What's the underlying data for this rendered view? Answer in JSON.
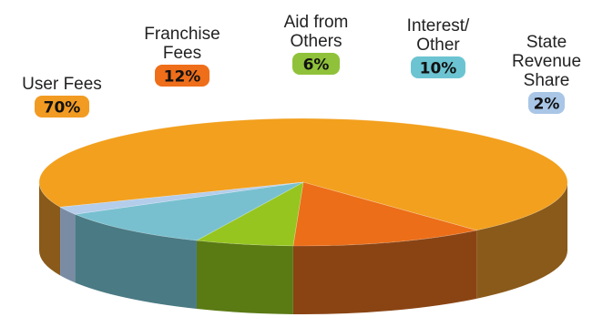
{
  "chart_data": {
    "type": "pie",
    "slices": [
      {
        "label_lines": [
          "User Fees"
        ],
        "value": 70,
        "display": "70%",
        "color": "#F2A01E",
        "side_color": "#8A5A1A",
        "badge_color": "#F29B22",
        "badge_text_color": "#111111"
      },
      {
        "label_lines": [
          "Franchise",
          "Fees"
        ],
        "value": 12,
        "display": "12%",
        "color": "#EC6E18",
        "side_color": "#8A4414",
        "badge_color": "#EE6E1A",
        "badge_text_color": "#111111"
      },
      {
        "label_lines": [
          "Aid from",
          "Others"
        ],
        "value": 6,
        "display": "6%",
        "color": "#96C51F",
        "side_color": "#5A7A14",
        "badge_color": "#8FC23A",
        "badge_text_color": "#111111"
      },
      {
        "label_lines": [
          "Interest/",
          "Other"
        ],
        "value": 10,
        "display": "10%",
        "color": "#78C0CF",
        "side_color": "#4A7A84",
        "badge_color": "#6CC4D2",
        "badge_text_color": "#111111"
      },
      {
        "label_lines": [
          "State",
          "Revenue",
          "Share"
        ],
        "value": 2,
        "display": "2%",
        "color": "#B4CDEB",
        "side_color": "#7A8CA4",
        "badge_color": "#A9C6E6",
        "badge_text_color": "#111111"
      }
    ]
  }
}
